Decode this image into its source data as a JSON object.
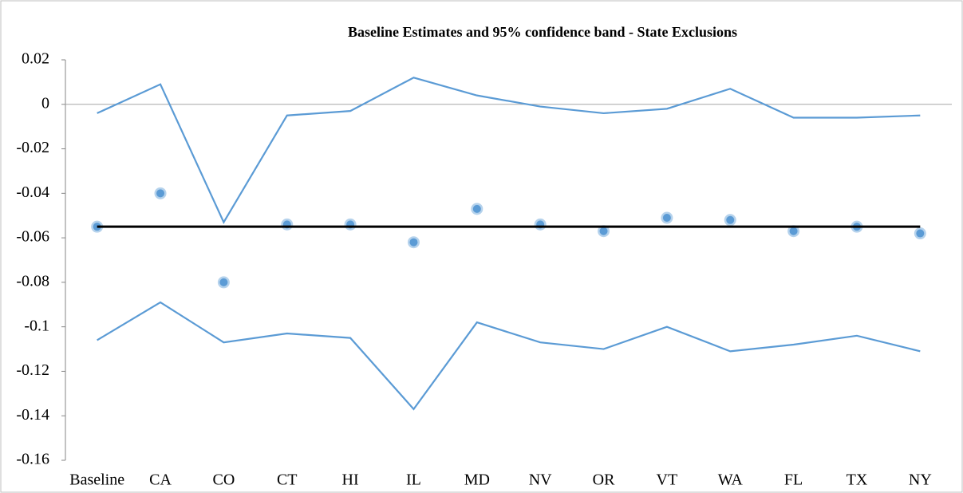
{
  "chart_data": {
    "type": "line",
    "title": "Baseline Estimates and 95% confidence band - State Exclusions",
    "categories": [
      "Baseline",
      "CA",
      "CO",
      "CT",
      "HI",
      "IL",
      "MD",
      "NV",
      "OR",
      "VT",
      "WA",
      "FL",
      "TX",
      "NY"
    ],
    "series": [
      {
        "color": "#5b9bd5",
        "style": "line",
        "values": [
          -0.004,
          0.009,
          -0.053,
          -0.005,
          -0.003,
          0.012,
          0.004,
          -0.001,
          -0.004,
          -0.002,
          0.007,
          -0.006,
          -0.006,
          -0.005
        ]
      },
      {
        "color": "#5b9bd5",
        "style": "marker",
        "values": [
          -0.055,
          -0.04,
          -0.08,
          -0.054,
          -0.054,
          -0.062,
          -0.047,
          -0.054,
          -0.057,
          -0.051,
          -0.052,
          -0.057,
          -0.055,
          -0.058
        ]
      },
      {
        "color": "#5b9bd5",
        "style": "line",
        "values": [
          -0.106,
          -0.089,
          -0.107,
          -0.103,
          -0.105,
          -0.137,
          -0.098,
          -0.107,
          -0.11,
          -0.1,
          -0.111,
          -0.108,
          -0.104,
          -0.111
        ]
      },
      {
        "color": "#000000",
        "style": "line",
        "values": [
          -0.055,
          -0.055,
          -0.055,
          -0.055,
          -0.055,
          -0.055,
          -0.055,
          -0.055,
          -0.055,
          -0.055,
          -0.055,
          -0.055,
          -0.055,
          -0.055
        ]
      }
    ],
    "ylim": [
      -0.16,
      0.02
    ],
    "yticks": [
      0.02,
      0,
      -0.02,
      -0.04,
      -0.06,
      -0.08,
      -0.1,
      -0.12,
      -0.14,
      -0.16
    ],
    "grid": false
  }
}
